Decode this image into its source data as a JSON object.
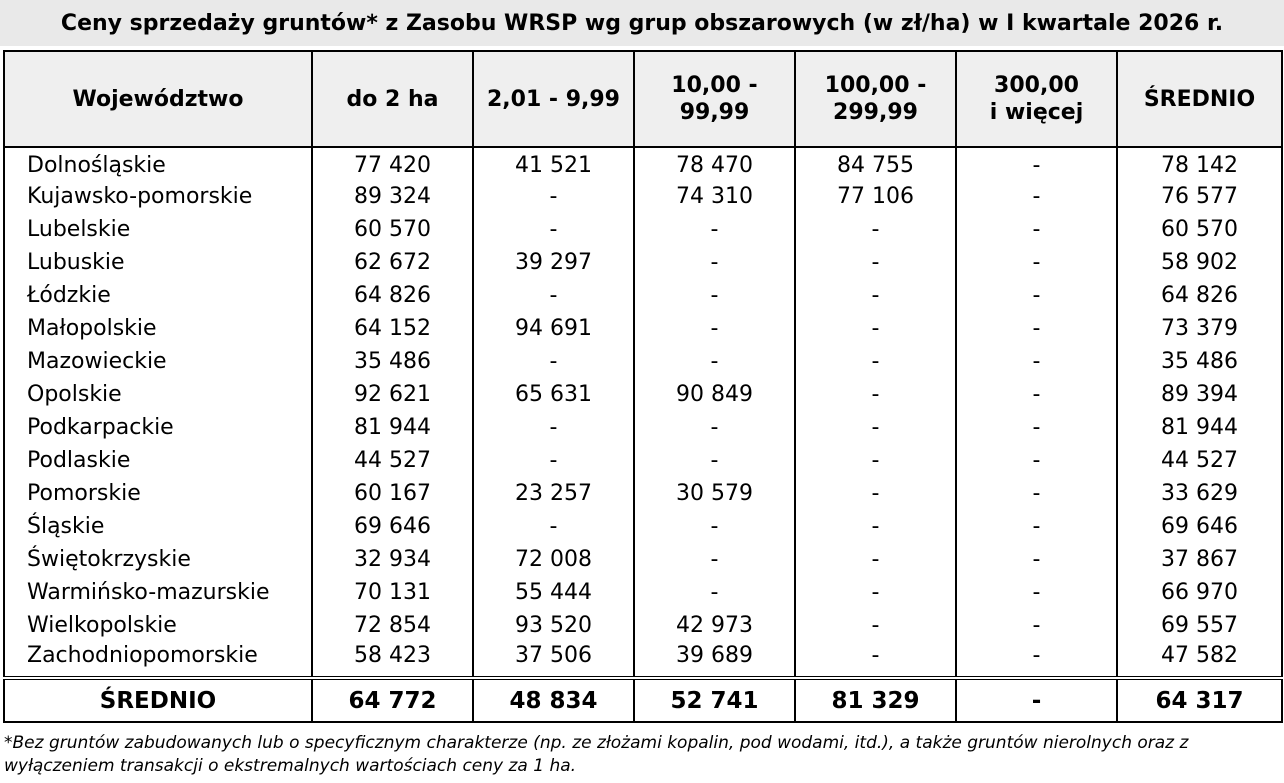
{
  "title": "Ceny sprzedaży gruntów* z Zasobu WRSP wg grup obszarowych (w zł/ha) w I kwartale 2026 r.",
  "headers": {
    "wojewodztwo": "Województwo",
    "do2": "do 2 ha",
    "r2_10_line": "2,01 - 9,99",
    "r10_line1": "10,00 -",
    "r10_line2": "99,99",
    "r100_line1": "100,00 -",
    "r100_line2": "299,99",
    "r300_line1": "300,00",
    "r300_line2": "i więcej",
    "srednio": "ŚREDNIO"
  },
  "rows": [
    {
      "name": "Dolnośląskie",
      "a": "77 420",
      "b": "41 521",
      "c": "78 470",
      "d": "84 755",
      "e": "-",
      "f": "78 142"
    },
    {
      "name": "Kujawsko-pomorskie",
      "a": "89 324",
      "b": "-",
      "c": "74 310",
      "d": "77 106",
      "e": "-",
      "f": "76 577"
    },
    {
      "name": "Lubelskie",
      "a": "60 570",
      "b": "-",
      "c": "-",
      "d": "-",
      "e": "-",
      "f": "60 570"
    },
    {
      "name": "Lubuskie",
      "a": "62 672",
      "b": "39 297",
      "c": "-",
      "d": "-",
      "e": "-",
      "f": "58 902"
    },
    {
      "name": "Łódzkie",
      "a": "64 826",
      "b": "-",
      "c": "-",
      "d": "-",
      "e": "-",
      "f": "64 826"
    },
    {
      "name": "Małopolskie",
      "a": "64 152",
      "b": "94 691",
      "c": "-",
      "d": "-",
      "e": "-",
      "f": "73 379"
    },
    {
      "name": "Mazowieckie",
      "a": "35 486",
      "b": "-",
      "c": "-",
      "d": "-",
      "e": "-",
      "f": "35 486"
    },
    {
      "name": "Opolskie",
      "a": "92 621",
      "b": "65 631",
      "c": "90 849",
      "d": "-",
      "e": "-",
      "f": "89 394"
    },
    {
      "name": "Podkarpackie",
      "a": "81 944",
      "b": "-",
      "c": "-",
      "d": "-",
      "e": "-",
      "f": "81 944"
    },
    {
      "name": "Podlaskie",
      "a": "44 527",
      "b": "-",
      "c": "-",
      "d": "-",
      "e": "-",
      "f": "44 527"
    },
    {
      "name": "Pomorskie",
      "a": "60 167",
      "b": "23 257",
      "c": "30 579",
      "d": "-",
      "e": "-",
      "f": "33 629"
    },
    {
      "name": "Śląskie",
      "a": "69 646",
      "b": "-",
      "c": "-",
      "d": "-",
      "e": "-",
      "f": "69 646"
    },
    {
      "name": "Świętokrzyskie",
      "a": "32 934",
      "b": "72 008",
      "c": "-",
      "d": "-",
      "e": "-",
      "f": "37 867"
    },
    {
      "name": "Warmińsko-mazurskie",
      "a": "70 131",
      "b": "55 444",
      "c": "-",
      "d": "-",
      "e": "-",
      "f": "66 970"
    },
    {
      "name": "Wielkopolskie",
      "a": "72 854",
      "b": "93 520",
      "c": "42 973",
      "d": "-",
      "e": "-",
      "f": "69 557"
    },
    {
      "name": "Zachodniopomorskie",
      "a": "58 423",
      "b": "37 506",
      "c": "39 689",
      "d": "-",
      "e": "-",
      "f": "47 582"
    }
  ],
  "total": {
    "name": "ŚREDNIO",
    "a": "64 772",
    "b": "48 834",
    "c": "52 741",
    "d": "81 329",
    "e": "-",
    "f": "64 317"
  },
  "footnote": "*Bez gruntów zabudowanych lub o specyficznym charakterze (np. ze złożami kopalin, pod wodami, itd.), a także gruntów nierolnych oraz z wyłączeniem transakcji o ekstremalnych wartościach ceny za 1 ha."
}
